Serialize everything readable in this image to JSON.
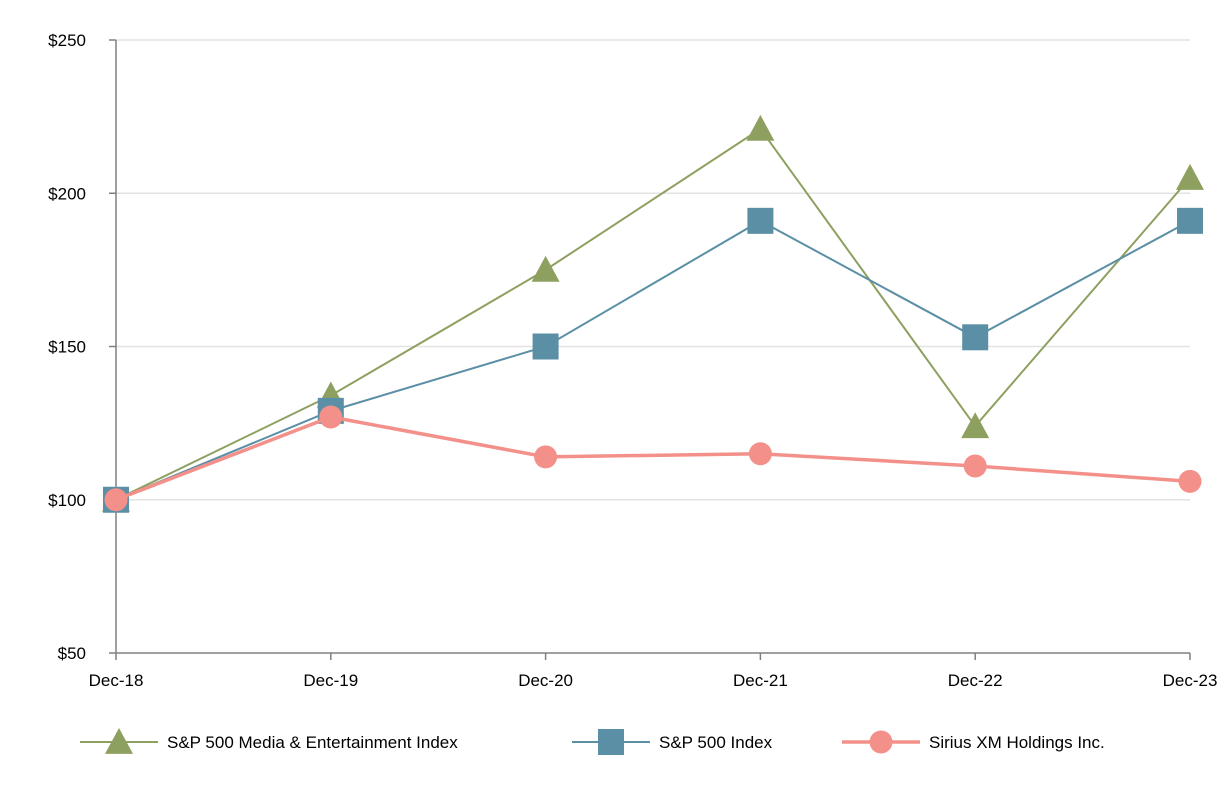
{
  "chart_data": {
    "type": "line",
    "categories": [
      "Dec-18",
      "Dec-19",
      "Dec-20",
      "Dec-21",
      "Dec-22",
      "Dec-23"
    ],
    "ylim": [
      50,
      250
    ],
    "yticks": [
      50,
      100,
      150,
      200,
      250
    ],
    "ytick_labels": [
      "$50",
      "$100",
      "$150",
      "$200",
      "$250"
    ],
    "grid": true,
    "legend_position": "bottom",
    "series": [
      {
        "name": "S&P 500 Media & Entertainment Index",
        "values": [
          100,
          134,
          175,
          221,
          124,
          205
        ],
        "color": "#8ea060",
        "marker": "triangle"
      },
      {
        "name": "S&P 500 Index",
        "values": [
          100,
          129,
          150,
          191,
          153,
          191
        ],
        "color": "#5b8fa5",
        "marker": "square"
      },
      {
        "name": "Sirius XM Holdings Inc.",
        "values": [
          100,
          127,
          114,
          115,
          111,
          106
        ],
        "color": "#f4908a",
        "marker": "circle"
      }
    ]
  }
}
